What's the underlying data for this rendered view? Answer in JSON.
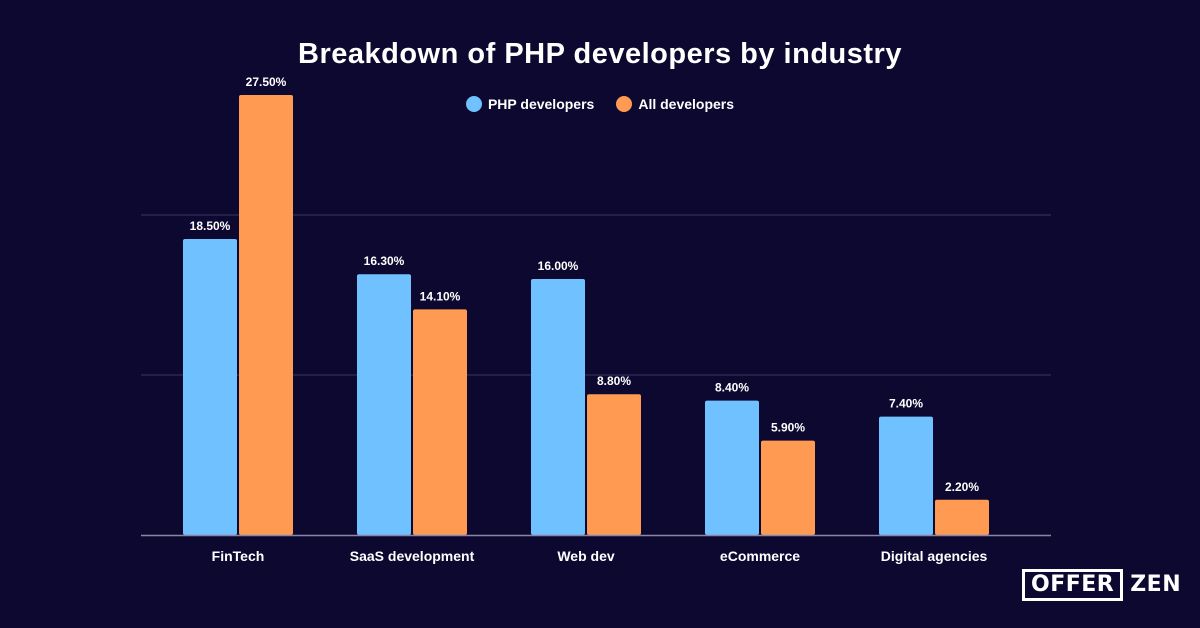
{
  "chart_data": {
    "type": "bar",
    "title": "Breakdown of PHP developers by industry",
    "categories": [
      "FinTech",
      "SaaS development",
      "Web dev",
      "eCommerce",
      "Digital agencies"
    ],
    "series": [
      {
        "name": "PHP developers",
        "color": "#6fc1ff",
        "values": [
          18.5,
          16.3,
          16.0,
          8.4,
          7.4
        ],
        "labels": [
          "18.50%",
          "16.30%",
          "16.00%",
          "8.40%",
          "7.40%"
        ]
      },
      {
        "name": "All developers",
        "color": "#ff9a52",
        "values": [
          27.5,
          14.1,
          8.8,
          5.9,
          2.2
        ],
        "labels": [
          "27.50%",
          "14.10%",
          "8.80%",
          "5.90%",
          "2.20%"
        ]
      }
    ],
    "xlabel": "",
    "ylabel": "",
    "ylim": [
      0,
      30
    ],
    "gridlines": [
      10,
      20
    ],
    "grid": true,
    "legend": "top-center"
  },
  "branding": {
    "logo_box_text": "OFFER",
    "logo_rest_text": "ZEN"
  },
  "colors": {
    "background": "#0d0830",
    "gridline": "#3a3560",
    "axis": "#8a86a8"
  }
}
